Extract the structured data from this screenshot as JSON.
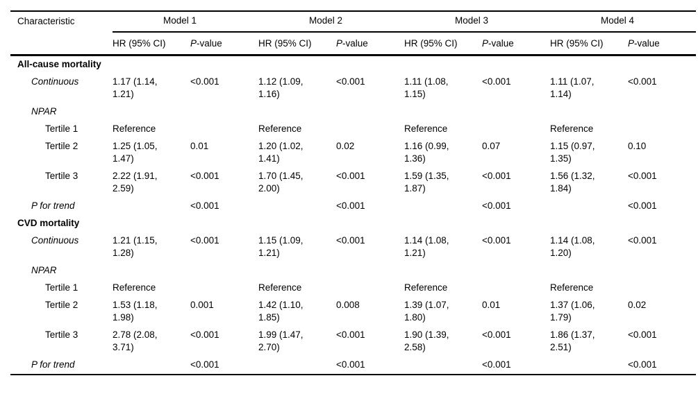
{
  "table": {
    "characteristic_header": "Characteristic",
    "models": [
      "Model 1",
      "Model 2",
      "Model 3",
      "Model 4"
    ],
    "hr_header": "HR (95% CI)",
    "p_header_italic": "P",
    "p_header_rest": "-value",
    "rows": [
      {
        "label": "All-cause mortality",
        "indent": 0,
        "emphasis": "bold",
        "cells": [
          "",
          "",
          "",
          "",
          "",
          "",
          "",
          ""
        ]
      },
      {
        "label": "Continuous",
        "indent": 1,
        "emphasis": "italic",
        "cells": [
          "1.17 (1.14, 1.21)",
          "<0.001",
          "1.12 (1.09, 1.16)",
          "<0.001",
          "1.11 (1.08, 1.15)",
          "<0.001",
          "1.11 (1.07, 1.14)",
          "<0.001"
        ]
      },
      {
        "label": "NPAR",
        "indent": 1,
        "emphasis": "italic",
        "cells": [
          "",
          "",
          "",
          "",
          "",
          "",
          "",
          ""
        ]
      },
      {
        "label": "Tertile 1",
        "indent": 2,
        "emphasis": "none",
        "cells": [
          "Reference",
          "",
          "Reference",
          "",
          "Reference",
          "",
          "Reference",
          ""
        ]
      },
      {
        "label": "Tertile 2",
        "indent": 2,
        "emphasis": "none",
        "cells": [
          "1.25 (1.05, 1.47)",
          "0.01",
          "1.20 (1.02, 1.41)",
          "0.02",
          "1.16 (0.99, 1.36)",
          "0.07",
          "1.15 (0.97, 1.35)",
          "0.10"
        ]
      },
      {
        "label": "Tertile 3",
        "indent": 2,
        "emphasis": "none",
        "cells": [
          "2.22 (1.91, 2.59)",
          "<0.001",
          "1.70 (1.45, 2.00)",
          "<0.001",
          "1.59 (1.35, 1.87)",
          "<0.001",
          "1.56 (1.32, 1.84)",
          "<0.001"
        ]
      },
      {
        "label": "P for trend",
        "indent": 1,
        "emphasis": "italic",
        "cells": [
          "",
          "<0.001",
          "",
          "<0.001",
          "",
          "<0.001",
          "",
          "<0.001"
        ]
      },
      {
        "label": "CVD mortality",
        "indent": 0,
        "emphasis": "bold",
        "cells": [
          "",
          "",
          "",
          "",
          "",
          "",
          "",
          ""
        ]
      },
      {
        "label": "Continuous",
        "indent": 1,
        "emphasis": "italic",
        "cells": [
          "1.21 (1.15, 1.28)",
          "<0.001",
          "1.15 (1.09, 1.21)",
          "<0.001",
          "1.14 (1.08, 1.21)",
          "<0.001",
          "1.14 (1.08, 1.20)",
          "<0.001"
        ]
      },
      {
        "label": "NPAR",
        "indent": 1,
        "emphasis": "italic",
        "cells": [
          "",
          "",
          "",
          "",
          "",
          "",
          "",
          ""
        ]
      },
      {
        "label": "Tertile 1",
        "indent": 2,
        "emphasis": "none",
        "cells": [
          "Reference",
          "",
          "Reference",
          "",
          "Reference",
          "",
          "Reference",
          ""
        ]
      },
      {
        "label": "Tertile 2",
        "indent": 2,
        "emphasis": "none",
        "cells": [
          "1.53 (1.18, 1.98)",
          "0.001",
          "1.42 (1.10, 1.85)",
          "0.008",
          "1.39 (1.07, 1.80)",
          "0.01",
          "1.37 (1.06, 1.79)",
          "0.02"
        ]
      },
      {
        "label": "Tertile 3",
        "indent": 2,
        "emphasis": "none",
        "cells": [
          "2.78 (2.08, 3.71)",
          "<0.001",
          "1.99 (1.47, 2.70)",
          "<0.001",
          "1.90 (1.39, 2.58)",
          "<0.001",
          "1.86 (1.37, 2.51)",
          "<0.001"
        ]
      },
      {
        "label": "P for trend",
        "indent": 1,
        "emphasis": "italic",
        "cells": [
          "",
          "<0.001",
          "",
          "<0.001",
          "",
          "<0.001",
          "",
          "<0.001"
        ]
      }
    ]
  }
}
